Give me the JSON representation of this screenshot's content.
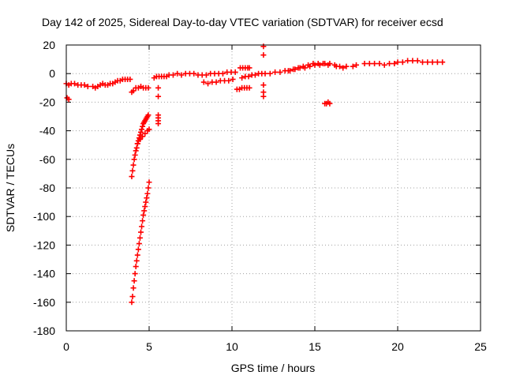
{
  "chart_data": {
    "type": "scatter",
    "title": "Day 142 of 2025, Sidereal Day-to-day VTEC variation (SDTVAR) for receiver ecsd",
    "xlabel": "GPS time / hours",
    "ylabel": "SDTVAR / TECUs",
    "xlim": [
      0,
      25
    ],
    "ylim": [
      -180,
      20
    ],
    "xticks": [
      0,
      5,
      10,
      15,
      20,
      25
    ],
    "yticks": [
      20,
      0,
      -20,
      -40,
      -60,
      -80,
      -100,
      -120,
      -140,
      -160,
      -180
    ],
    "grid": true,
    "marker": "plus",
    "series": [
      {
        "name": "SDTVAR",
        "color": "#ff0000",
        "segments": [
          {
            "x": [
              0.0,
              0.15,
              0.3,
              0.5,
              0.7,
              0.9,
              1.1,
              1.3
            ],
            "y": [
              -7,
              -8,
              -7,
              -7,
              -8,
              -8,
              -8,
              -9
            ]
          },
          {
            "x": [
              0.05,
              0.15
            ],
            "y": [
              -17,
              -18
            ]
          },
          {
            "x": [
              1.6,
              1.75,
              1.9,
              2.05,
              2.2,
              2.35,
              2.5,
              2.65,
              2.8,
              2.95
            ],
            "y": [
              -9,
              -10,
              -9,
              -8,
              -7,
              -8,
              -8,
              -7,
              -7,
              -6
            ]
          },
          {
            "x": [
              3.1,
              3.25,
              3.4,
              3.55,
              3.7,
              3.85
            ],
            "y": [
              -5,
              -5,
              -4,
              -4,
              -4,
              -4
            ]
          },
          {
            "x": [
              3.95,
              4.05,
              4.2,
              4.35,
              4.5,
              4.65,
              4.8,
              4.95
            ],
            "y": [
              -13,
              -12,
              -10,
              -10,
              -9,
              -10,
              -10,
              -10
            ]
          },
          {
            "x": [
              3.95,
              4.0,
              4.05,
              4.1,
              4.15,
              4.2,
              4.25,
              4.3,
              4.35,
              4.4,
              4.45,
              4.5,
              4.55,
              4.6,
              4.65,
              4.7,
              4.75,
              4.8,
              4.85,
              4.9,
              4.95
            ],
            "y": [
              -72,
              -68,
              -64,
              -60,
              -57,
              -54,
              -52,
              -49,
              -47,
              -45,
              -43,
              -41,
              -39,
              -37,
              -35,
              -34,
              -33,
              -32,
              -31,
              -30,
              -29
            ]
          },
          {
            "x": [
              4.3,
              4.45,
              4.6,
              4.75,
              4.9,
              5.0
            ],
            "y": [
              -49,
              -46,
              -44,
              -42,
              -40,
              -39
            ]
          },
          {
            "x": [
              3.95,
              4.0,
              4.05,
              4.1,
              4.15,
              4.2,
              4.25,
              4.3,
              4.35,
              4.4,
              4.45,
              4.5,
              4.55,
              4.6,
              4.65,
              4.7,
              4.75,
              4.8,
              4.85,
              4.9,
              4.95,
              5.0
            ],
            "y": [
              -160,
              -156,
              -150,
              -145,
              -140,
              -135,
              -131,
              -127,
              -123,
              -119,
              -115,
              -111,
              -107,
              -103,
              -99,
              -96,
              -93,
              -90,
              -87,
              -84,
              -80,
              -76
            ]
          },
          {
            "x": [
              5.3,
              5.45,
              5.6,
              5.75,
              5.9,
              6.05
            ],
            "y": [
              -3,
              -2,
              -2,
              -2,
              -2,
              -2
            ]
          },
          {
            "x": [
              5.55,
              5.55,
              5.55,
              5.55,
              5.55,
              5.55
            ],
            "y": [
              -10,
              -16,
              -29,
              -31,
              -33,
              -35
            ]
          },
          {
            "x": [
              6.2,
              6.45,
              6.7,
              6.95,
              7.2,
              7.45,
              7.7,
              7.95,
              8.2,
              8.45,
              8.7,
              8.95,
              9.2,
              9.45,
              9.7,
              9.95,
              10.2
            ],
            "y": [
              -1,
              -1,
              0,
              -1,
              0,
              0,
              0,
              -1,
              -1,
              -1,
              0,
              0,
              0,
              0,
              1,
              1,
              1
            ]
          },
          {
            "x": [
              8.3,
              8.55,
              8.8,
              9.05,
              9.3,
              9.55,
              9.8,
              10.05
            ],
            "y": [
              -6,
              -7,
              -6,
              -6,
              -5,
              -5,
              -5,
              -4
            ]
          },
          {
            "x": [
              10.3,
              10.45,
              10.6,
              10.75,
              10.9,
              11.05
            ],
            "y": [
              -11,
              -11,
              -10,
              -10,
              -10,
              -10
            ]
          },
          {
            "x": [
              10.5,
              10.65,
              10.8,
              10.95,
              11.05
            ],
            "y": [
              4,
              4,
              4,
              4,
              4
            ]
          },
          {
            "x": [
              10.6,
              10.8,
              11.0,
              11.2,
              11.4,
              11.6,
              11.8
            ],
            "y": [
              -3,
              -2,
              -2,
              -1,
              -1,
              0,
              0
            ]
          },
          {
            "x": [
              11.9,
              11.9,
              11.9,
              11.9,
              11.9
            ],
            "y": [
              19,
              13,
              -8,
              -13,
              -16
            ]
          },
          {
            "x": [
              12.0,
              12.3,
              12.6,
              12.9,
              13.2,
              13.5,
              13.8,
              14.1,
              14.4,
              14.7,
              15.0,
              15.3,
              15.6,
              15.9,
              16.2
            ],
            "y": [
              0,
              0,
              1,
              1,
              2,
              2,
              3,
              4,
              4,
              5,
              6,
              6,
              7,
              7,
              6
            ]
          },
          {
            "x": [
              13.4,
              13.7,
              14.0,
              14.3,
              14.6,
              14.9,
              15.2,
              15.5,
              15.8
            ],
            "y": [
              2,
              3,
              4,
              5,
              6,
              7,
              7,
              7,
              6
            ]
          },
          {
            "x": [
              15.6,
              15.7,
              15.8,
              15.9
            ],
            "y": [
              -21,
              -21,
              -20,
              -21
            ]
          },
          {
            "x": [
              16.3,
              16.5,
              16.7,
              16.9
            ],
            "y": [
              5,
              5,
              4,
              5
            ]
          },
          {
            "x": [
              17.3,
              17.5
            ],
            "y": [
              5,
              6
            ]
          },
          {
            "x": [
              18.0,
              18.3,
              18.6,
              18.9,
              19.2,
              19.5,
              19.8
            ],
            "y": [
              7,
              7,
              7,
              7,
              6,
              7,
              7
            ]
          },
          {
            "x": [
              20.0,
              20.3,
              20.6,
              20.9,
              21.2,
              21.5,
              21.8,
              22.1,
              22.4,
              22.7
            ],
            "y": [
              8,
              8,
              9,
              9,
              9,
              8,
              8,
              8,
              8,
              8
            ]
          }
        ]
      }
    ]
  }
}
